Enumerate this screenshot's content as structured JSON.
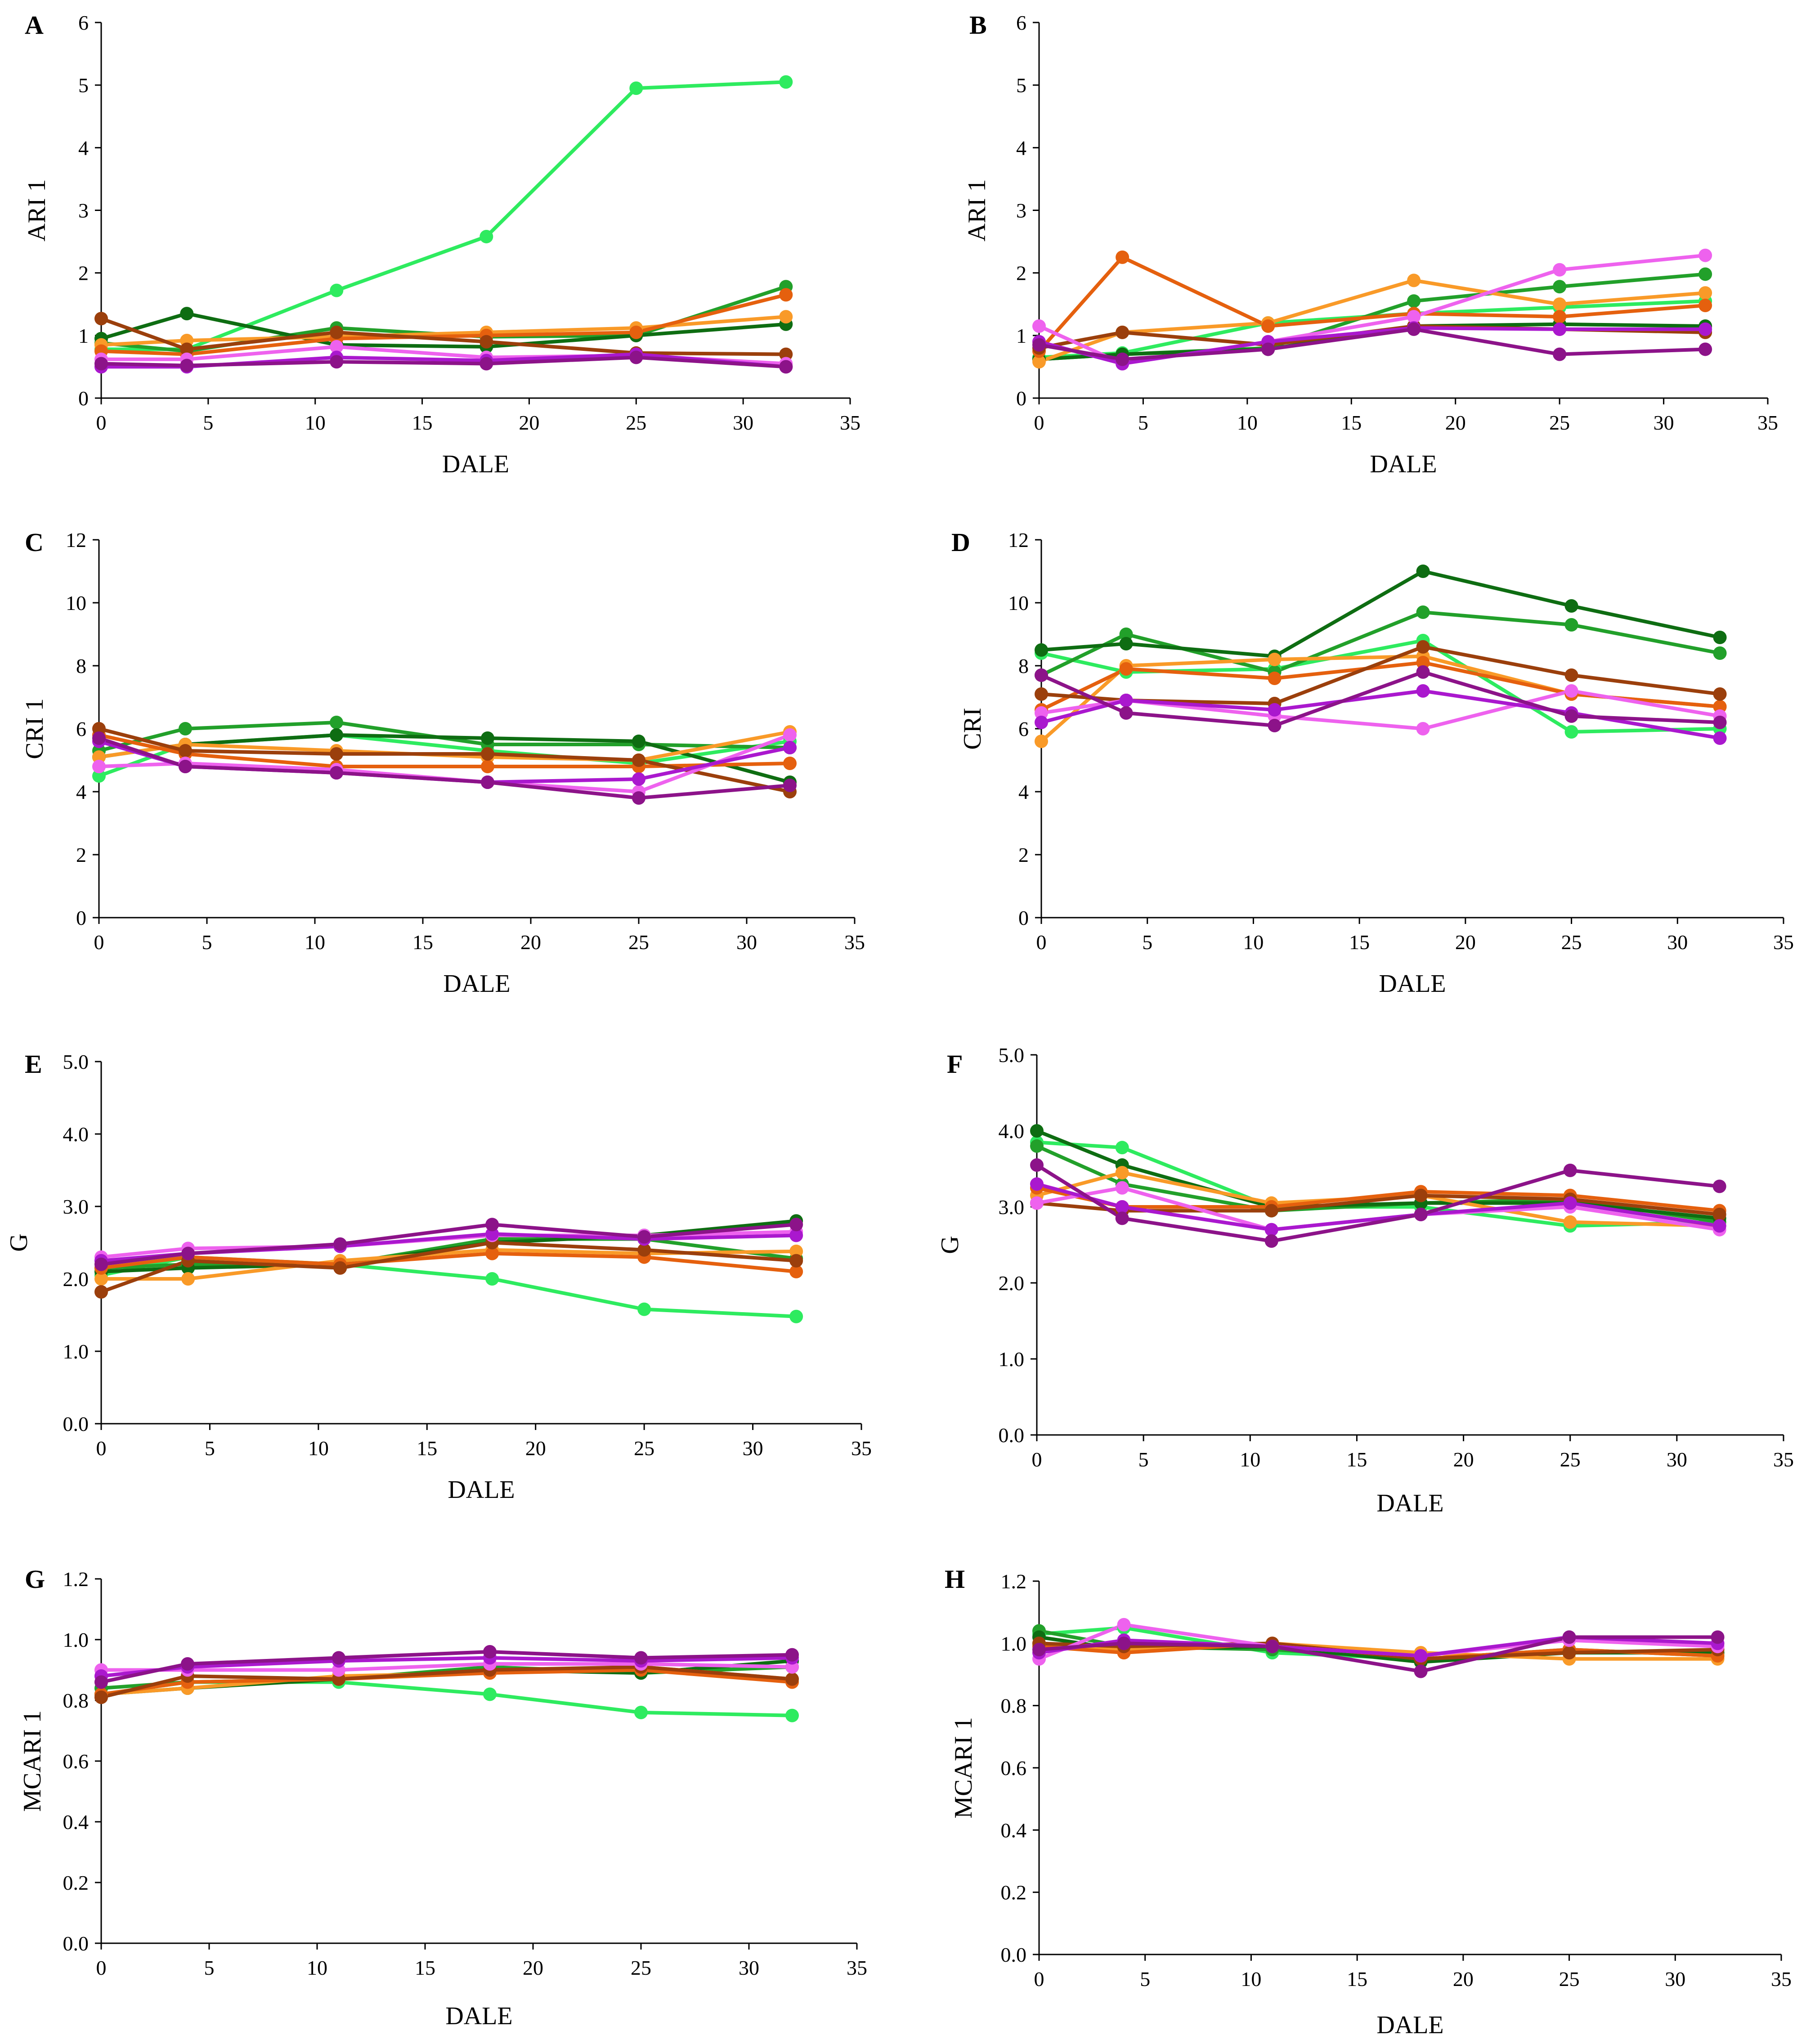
{
  "series_colors": [
    "#2EEB5F",
    "#22A02A",
    "#0E6D12",
    "#F99A28",
    "#E5600E",
    "#9B3F0C",
    "#EE62EE",
    "#AA18CE",
    "#8C1389"
  ],
  "chart_data": [
    {
      "panel": "A",
      "type": "line",
      "xlabel": "DALE",
      "ylabel": "ARI 1",
      "xlim": [
        0,
        35
      ],
      "xticks": [
        0,
        5,
        10,
        15,
        20,
        25,
        30,
        35
      ],
      "xtick_labels": [
        "0",
        "5",
        "10",
        "15",
        "20",
        "25",
        "30",
        "35"
      ],
      "ylim": [
        0,
        6
      ],
      "yticks": [
        0,
        1,
        2,
        3,
        4,
        5,
        6
      ],
      "ytick_labels": [
        "0",
        "1",
        "2",
        "3",
        "4",
        "5",
        "6"
      ],
      "x": [
        0,
        4,
        11,
        18,
        25,
        32
      ],
      "series": [
        {
          "values": [
            0.78,
            0.78,
            1.72,
            2.58,
            4.95,
            5.05
          ]
        },
        {
          "values": [
            0.88,
            0.75,
            1.12,
            0.98,
            1.0,
            1.78
          ]
        },
        {
          "values": [
            0.95,
            1.35,
            0.85,
            0.82,
            1.0,
            1.18
          ]
        },
        {
          "values": [
            0.85,
            0.92,
            0.98,
            1.05,
            1.12,
            1.3
          ]
        },
        {
          "values": [
            0.75,
            0.7,
            0.95,
            1.0,
            1.05,
            1.65
          ]
        },
        {
          "values": [
            1.27,
            0.78,
            1.05,
            0.9,
            0.72,
            0.7
          ]
        },
        {
          "values": [
            0.62,
            0.62,
            0.82,
            0.65,
            0.68,
            0.55
          ]
        },
        {
          "values": [
            0.5,
            0.5,
            0.65,
            0.6,
            0.7,
            0.5
          ]
        },
        {
          "values": [
            0.55,
            0.52,
            0.58,
            0.55,
            0.65,
            0.5
          ]
        }
      ]
    },
    {
      "panel": "B",
      "type": "line",
      "xlabel": "DALE",
      "ylabel": "ARI 1",
      "xlim": [
        0,
        35
      ],
      "xticks": [
        0,
        5,
        10,
        15,
        20,
        25,
        30,
        35
      ],
      "xtick_labels": [
        "0",
        "5",
        "10",
        "15",
        "20",
        "25",
        "30",
        "35"
      ],
      "ylim": [
        0,
        6
      ],
      "yticks": [
        0,
        1,
        2,
        3,
        4,
        5,
        6
      ],
      "ytick_labels": [
        "0",
        "1",
        "2",
        "3",
        "4",
        "5",
        "6"
      ],
      "x": [
        0,
        4,
        11,
        18,
        25,
        32
      ],
      "series": [
        {
          "values": [
            0.65,
            0.72,
            1.2,
            1.35,
            1.45,
            1.55
          ]
        },
        {
          "values": [
            0.62,
            0.7,
            0.8,
            1.55,
            1.78,
            1.98
          ]
        },
        {
          "values": [
            0.62,
            0.7,
            0.78,
            1.15,
            1.18,
            1.15
          ]
        },
        {
          "values": [
            0.58,
            1.05,
            1.2,
            1.88,
            1.5,
            1.68
          ]
        },
        {
          "values": [
            0.75,
            2.25,
            1.15,
            1.35,
            1.3,
            1.48
          ]
        },
        {
          "values": [
            0.8,
            1.05,
            0.85,
            1.15,
            1.1,
            1.05
          ]
        },
        {
          "values": [
            1.15,
            0.55,
            0.9,
            1.3,
            2.05,
            2.28
          ]
        },
        {
          "values": [
            0.9,
            0.55,
            0.9,
            1.12,
            1.1,
            1.1
          ]
        },
        {
          "values": [
            0.85,
            0.62,
            0.78,
            1.1,
            0.7,
            0.78
          ]
        }
      ]
    },
    {
      "panel": "C",
      "type": "line",
      "xlabel": "DALE",
      "ylabel": "CRI 1",
      "xlim": [
        0,
        35
      ],
      "xticks": [
        0,
        5,
        10,
        15,
        20,
        25,
        30,
        35
      ],
      "xtick_labels": [
        "0",
        "5",
        "10",
        "15",
        "20",
        "25",
        "30",
        "35"
      ],
      "ylim": [
        0,
        12
      ],
      "yticks": [
        0,
        2,
        4,
        6,
        8,
        10,
        12
      ],
      "ytick_labels": [
        "0",
        "2",
        "4",
        "6",
        "8",
        "10",
        "12"
      ],
      "x": [
        0,
        4,
        11,
        18,
        25,
        32
      ],
      "series": [
        {
          "values": [
            4.5,
            5.5,
            5.8,
            5.3,
            4.9,
            5.6
          ]
        },
        {
          "values": [
            5.3,
            6.0,
            6.2,
            5.5,
            5.5,
            5.4
          ]
        },
        {
          "values": [
            5.1,
            5.5,
            5.8,
            5.7,
            5.6,
            4.3
          ]
        },
        {
          "values": [
            5.1,
            5.5,
            5.3,
            5.1,
            5.0,
            5.9
          ]
        },
        {
          "values": [
            5.8,
            5.2,
            4.8,
            4.8,
            4.8,
            4.9
          ]
        },
        {
          "values": [
            6.0,
            5.3,
            5.2,
            5.2,
            5.0,
            4.0
          ]
        },
        {
          "values": [
            4.8,
            4.9,
            4.7,
            4.3,
            4.0,
            5.8
          ]
        },
        {
          "values": [
            5.6,
            4.8,
            4.6,
            4.3,
            4.4,
            5.4
          ]
        },
        {
          "values": [
            5.7,
            4.8,
            4.6,
            4.3,
            3.8,
            4.2
          ]
        }
      ]
    },
    {
      "panel": "D",
      "type": "line",
      "xlabel": "DALE",
      "ylabel": "CRI",
      "xlim": [
        0,
        35
      ],
      "xticks": [
        0,
        5,
        10,
        15,
        20,
        25,
        30,
        35
      ],
      "xtick_labels": [
        "0",
        "5",
        "10",
        "15",
        "20",
        "25",
        "30",
        "35"
      ],
      "ylim": [
        0,
        12
      ],
      "yticks": [
        0,
        2,
        4,
        6,
        8,
        10,
        12
      ],
      "ytick_labels": [
        "0",
        "2",
        "4",
        "6",
        "8",
        "10",
        "12"
      ],
      "x": [
        0,
        4,
        11,
        18,
        25,
        32
      ],
      "series": [
        {
          "values": [
            8.4,
            7.8,
            7.9,
            8.8,
            5.9,
            6.0
          ]
        },
        {
          "values": [
            7.7,
            9.0,
            7.8,
            9.7,
            9.3,
            8.4
          ]
        },
        {
          "values": [
            8.5,
            8.7,
            8.3,
            11.0,
            9.9,
            8.9
          ]
        },
        {
          "values": [
            5.6,
            8.0,
            8.2,
            8.3,
            7.1,
            6.7
          ]
        },
        {
          "values": [
            6.6,
            7.9,
            7.6,
            8.1,
            7.1,
            6.7
          ]
        },
        {
          "values": [
            7.1,
            6.9,
            6.8,
            8.6,
            7.7,
            7.1
          ]
        },
        {
          "values": [
            6.5,
            6.9,
            6.4,
            6.0,
            7.2,
            6.4
          ]
        },
        {
          "values": [
            6.2,
            6.9,
            6.6,
            7.2,
            6.5,
            5.7
          ]
        },
        {
          "values": [
            7.7,
            6.5,
            6.1,
            7.8,
            6.4,
            6.2
          ]
        }
      ]
    },
    {
      "panel": "E",
      "type": "line",
      "xlabel": "DALE",
      "ylabel": "G",
      "xlim": [
        0,
        35
      ],
      "xticks": [
        0,
        5,
        10,
        15,
        20,
        25,
        30,
        35
      ],
      "xtick_labels": [
        "0",
        "5",
        "10",
        "15",
        "20",
        "25",
        "30",
        "35"
      ],
      "ylim": [
        0,
        5
      ],
      "yticks": [
        0,
        1,
        2,
        3,
        4,
        5
      ],
      "ytick_labels": [
        "0.0",
        "1.0",
        "2.0",
        "3.0",
        "4.0",
        "5.0"
      ],
      "x": [
        0,
        4,
        11,
        18,
        25,
        32
      ],
      "series": [
        {
          "values": [
            2.05,
            2.3,
            2.2,
            2.0,
            1.58,
            1.48
          ]
        },
        {
          "values": [
            2.15,
            2.2,
            2.2,
            2.55,
            2.55,
            2.28
          ]
        },
        {
          "values": [
            2.1,
            2.15,
            2.2,
            2.5,
            2.6,
            2.8
          ]
        },
        {
          "values": [
            2.0,
            2.0,
            2.25,
            2.4,
            2.35,
            2.38
          ]
        },
        {
          "values": [
            2.15,
            2.3,
            2.2,
            2.35,
            2.3,
            2.1
          ]
        },
        {
          "values": [
            1.82,
            2.25,
            2.15,
            2.5,
            2.4,
            2.25
          ]
        },
        {
          "values": [
            2.3,
            2.42,
            2.45,
            2.6,
            2.6,
            2.65
          ]
        },
        {
          "values": [
            2.25,
            2.35,
            2.45,
            2.62,
            2.55,
            2.6
          ]
        },
        {
          "values": [
            2.2,
            2.35,
            2.48,
            2.75,
            2.58,
            2.75
          ]
        }
      ]
    },
    {
      "panel": "F",
      "type": "line",
      "xlabel": "DALE",
      "ylabel": "G",
      "xlim": [
        0,
        35
      ],
      "xticks": [
        0,
        5,
        10,
        15,
        20,
        25,
        30,
        35
      ],
      "xtick_labels": [
        "0",
        "5",
        "10",
        "15",
        "20",
        "25",
        "30",
        "35"
      ],
      "ylim": [
        0,
        5
      ],
      "yticks": [
        0,
        1,
        2,
        3,
        4,
        5
      ],
      "ytick_labels": [
        "0.0",
        "1.0",
        "2.0",
        "3.0",
        "4.0",
        "5.0"
      ],
      "x": [
        0,
        4,
        11,
        18,
        25,
        32
      ],
      "series": [
        {
          "values": [
            3.85,
            3.78,
            3.0,
            3.0,
            2.75,
            2.8
          ]
        },
        {
          "values": [
            3.8,
            3.3,
            2.95,
            3.05,
            3.1,
            2.8
          ]
        },
        {
          "values": [
            4.0,
            3.55,
            3.0,
            3.05,
            3.05,
            2.85
          ]
        },
        {
          "values": [
            3.15,
            3.45,
            3.05,
            3.15,
            2.8,
            2.75
          ]
        },
        {
          "values": [
            3.25,
            3.0,
            3.0,
            3.2,
            3.15,
            2.95
          ]
        },
        {
          "values": [
            3.05,
            2.95,
            2.95,
            3.15,
            3.1,
            2.9
          ]
        },
        {
          "values": [
            3.05,
            3.25,
            2.7,
            2.9,
            3.0,
            2.7
          ]
        },
        {
          "values": [
            3.3,
            3.0,
            2.7,
            2.9,
            3.05,
            2.75
          ]
        },
        {
          "values": [
            3.55,
            2.85,
            2.55,
            2.9,
            3.48,
            3.27
          ]
        }
      ]
    },
    {
      "panel": "G",
      "type": "line",
      "xlabel": "DALE",
      "ylabel": "MCARI 1",
      "xlim": [
        0,
        35
      ],
      "xticks": [
        0,
        5,
        10,
        15,
        20,
        25,
        30,
        35
      ],
      "xtick_labels": [
        "0",
        "5",
        "10",
        "15",
        "20",
        "25",
        "30",
        "35"
      ],
      "ylim": [
        0,
        1.2
      ],
      "yticks": [
        0,
        0.2,
        0.4,
        0.6,
        0.8,
        1.0,
        1.2
      ],
      "ytick_labels": [
        "0.0",
        "0.2",
        "0.4",
        "0.6",
        "0.8",
        "1.0",
        "1.2"
      ],
      "x": [
        0,
        4,
        11,
        18,
        25,
        32
      ],
      "series": [
        {
          "values": [
            0.82,
            0.86,
            0.86,
            0.82,
            0.76,
            0.75
          ]
        },
        {
          "values": [
            0.84,
            0.86,
            0.87,
            0.91,
            0.89,
            0.91
          ]
        },
        {
          "values": [
            0.82,
            0.84,
            0.87,
            0.9,
            0.89,
            0.93
          ]
        },
        {
          "values": [
            0.82,
            0.84,
            0.88,
            0.89,
            0.91,
            0.87
          ]
        },
        {
          "values": [
            0.82,
            0.86,
            0.87,
            0.89,
            0.9,
            0.86
          ]
        },
        {
          "values": [
            0.81,
            0.88,
            0.87,
            0.9,
            0.91,
            0.87
          ]
        },
        {
          "values": [
            0.9,
            0.9,
            0.9,
            0.92,
            0.92,
            0.91
          ]
        },
        {
          "values": [
            0.88,
            0.91,
            0.93,
            0.94,
            0.93,
            0.94
          ]
        },
        {
          "values": [
            0.86,
            0.92,
            0.94,
            0.96,
            0.94,
            0.95
          ]
        }
      ]
    },
    {
      "panel": "H",
      "type": "line",
      "xlabel": "DALE",
      "ylabel": "MCARI 1",
      "xlim": [
        0,
        35
      ],
      "xticks": [
        0,
        5,
        10,
        15,
        20,
        25,
        30,
        35
      ],
      "xtick_labels": [
        "0",
        "5",
        "10",
        "15",
        "20",
        "25",
        "30",
        "35"
      ],
      "ylim": [
        0,
        1.2
      ],
      "yticks": [
        0,
        0.2,
        0.4,
        0.6,
        0.8,
        1.0,
        1.2
      ],
      "ytick_labels": [
        "0.0",
        "0.2",
        "0.4",
        "0.6",
        "0.8",
        "1.0",
        "1.2"
      ],
      "x": [
        0,
        4,
        11,
        18,
        25,
        32
      ],
      "series": [
        {
          "values": [
            1.03,
            1.05,
            0.97,
            0.95,
            0.97,
            0.97
          ]
        },
        {
          "values": [
            1.04,
            0.99,
            0.98,
            0.95,
            0.98,
            0.96
          ]
        },
        {
          "values": [
            1.02,
            0.98,
            0.99,
            0.94,
            0.97,
            0.97
          ]
        },
        {
          "values": [
            1.0,
            0.98,
            1.0,
            0.97,
            0.95,
            0.95
          ]
        },
        {
          "values": [
            0.99,
            0.97,
            1.0,
            0.95,
            0.98,
            0.96
          ]
        },
        {
          "values": [
            1.0,
            0.99,
            1.0,
            0.95,
            0.97,
            0.98
          ]
        },
        {
          "values": [
            0.95,
            1.06,
            0.99,
            0.96,
            1.01,
            0.99
          ]
        },
        {
          "values": [
            0.97,
            1.01,
            0.99,
            0.96,
            1.02,
            1.0
          ]
        },
        {
          "values": [
            0.98,
            1.0,
            0.99,
            0.91,
            1.02,
            1.02
          ]
        }
      ]
    }
  ]
}
